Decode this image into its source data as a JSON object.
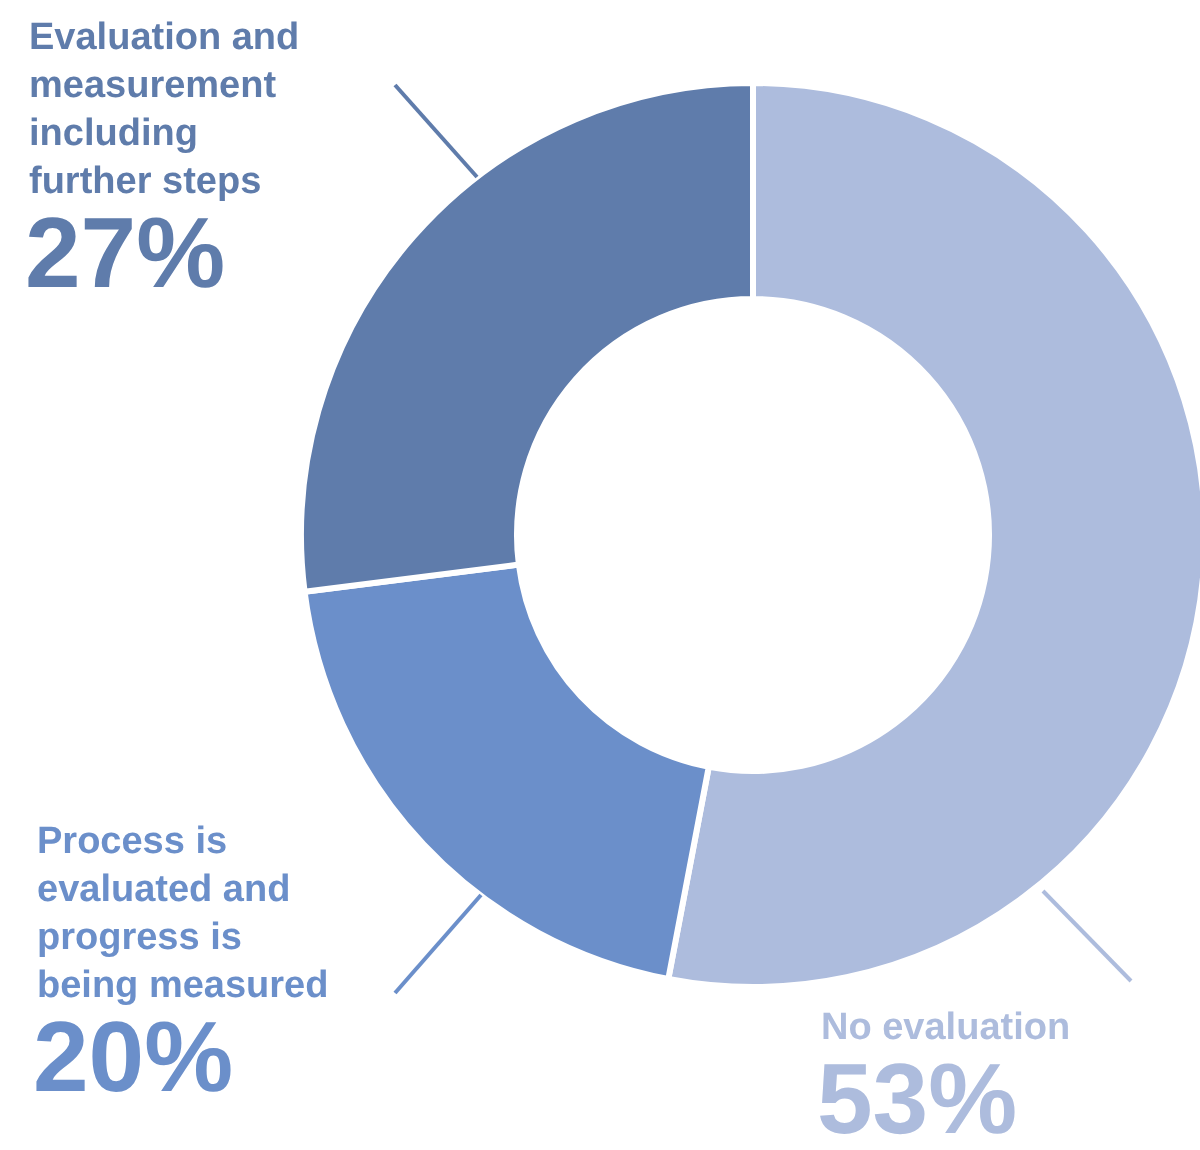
{
  "chart_data": {
    "type": "donut",
    "categories": [
      "No evaluation",
      "Process is evaluated and progress is being measured",
      "Evaluation and measurement including further steps"
    ],
    "values": [
      53,
      20,
      27
    ],
    "value_labels": [
      "53%",
      "20%",
      "27%"
    ],
    "colors": [
      "#adbcdd",
      "#6b8fca",
      "#5f7cab"
    ]
  }
}
